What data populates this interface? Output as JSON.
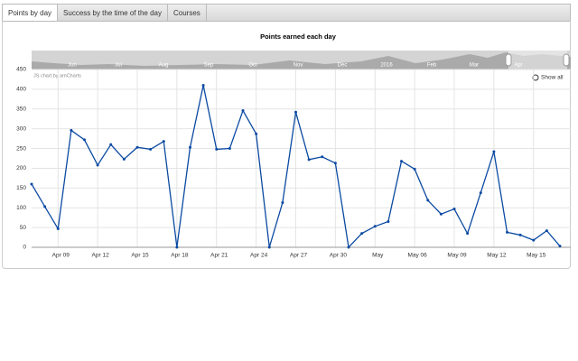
{
  "tabs": [
    "Points by day",
    "Success by the time of the day",
    "Courses"
  ],
  "chart_data": {
    "type": "line",
    "title": "Points earned each day",
    "credit": "JS chart by amCharts",
    "show_all": "Show all",
    "navigator_labels": [
      "Jun",
      "Jul",
      "Aug",
      "Sep",
      "Oct",
      "Nov",
      "Dec",
      "2016",
      "Feb",
      "Mar",
      "Apr"
    ],
    "categories": [
      null,
      null,
      "Apr 09",
      null,
      null,
      "Apr 12",
      null,
      null,
      "Apr 15",
      null,
      null,
      "Apr 18",
      null,
      null,
      "Apr 21",
      null,
      null,
      "Apr 24",
      null,
      null,
      "Apr 27",
      null,
      null,
      "Apr 30",
      null,
      null,
      "May",
      null,
      null,
      "May 06",
      null,
      null,
      "May 09",
      null,
      null,
      "May 12",
      null,
      null,
      "May 15",
      null,
      null
    ],
    "values": [
      160,
      103,
      47,
      296,
      272,
      208,
      260,
      223,
      253,
      248,
      268,
      0,
      253,
      410,
      248,
      250,
      346,
      287,
      0,
      113,
      342,
      222,
      229,
      213,
      0,
      35,
      53,
      65,
      218,
      198,
      119,
      84,
      97,
      35,
      138,
      242,
      38,
      31,
      18,
      42,
      3
    ],
    "color": "#0b4aa2",
    "ylim": [
      0,
      450
    ],
    "yticks": [
      0,
      50,
      100,
      150,
      200,
      250,
      300,
      350,
      400,
      450
    ],
    "grid": true
  }
}
